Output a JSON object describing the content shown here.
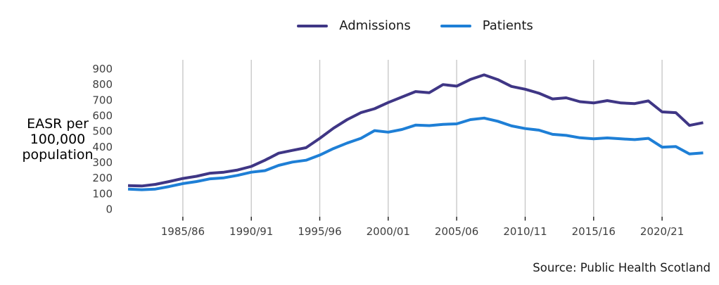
{
  "legend": {
    "items": [
      {
        "label": "Admissions",
        "color": "#3F3685"
      },
      {
        "label": "Patients",
        "color": "#1E7FD6"
      }
    ]
  },
  "y_axis": {
    "title_lines": [
      "EASR per",
      "100,000",
      "population"
    ],
    "ticks": [
      0,
      100,
      200,
      300,
      400,
      500,
      600,
      700,
      800,
      900
    ]
  },
  "x_axis": {
    "ticks": [
      "1985/86",
      "1990/91",
      "1995/96",
      "2000/01",
      "2005/06",
      "2010/11",
      "2015/16",
      "2020/21"
    ]
  },
  "source": "Source: Public Health Scotland",
  "chart_data": {
    "type": "line",
    "x": [
      "1981/82",
      "1982/83",
      "1983/84",
      "1984/85",
      "1985/86",
      "1986/87",
      "1987/88",
      "1988/89",
      "1989/90",
      "1990/91",
      "1991/92",
      "1992/93",
      "1993/94",
      "1994/95",
      "1995/96",
      "1996/97",
      "1997/98",
      "1998/99",
      "1999/00",
      "2000/01",
      "2001/02",
      "2002/03",
      "2003/04",
      "2004/05",
      "2005/06",
      "2006/07",
      "2007/08",
      "2008/09",
      "2009/10",
      "2010/11",
      "2011/12",
      "2012/13",
      "2013/14",
      "2014/15",
      "2015/16",
      "2016/17",
      "2017/18",
      "2018/19",
      "2019/20",
      "2020/21",
      "2021/22",
      "2022/23",
      "2023/24"
    ],
    "series": [
      {
        "name": "Admissions",
        "color": "#3F3685",
        "values": [
          152,
          150,
          160,
          178,
          198,
          212,
          232,
          238,
          252,
          275,
          315,
          360,
          378,
          395,
          455,
          520,
          575,
          620,
          645,
          685,
          720,
          755,
          748,
          800,
          790,
          833,
          862,
          832,
          788,
          770,
          745,
          708,
          715,
          690,
          682,
          697,
          682,
          678,
          695,
          625,
          620,
          538,
          556
        ]
      },
      {
        "name": "Patients",
        "color": "#1E7FD6",
        "values": [
          130,
          126,
          130,
          146,
          165,
          178,
          196,
          202,
          218,
          238,
          248,
          282,
          303,
          315,
          348,
          390,
          425,
          455,
          505,
          495,
          512,
          540,
          537,
          545,
          548,
          575,
          585,
          565,
          535,
          518,
          508,
          481,
          474,
          459,
          452,
          458,
          452,
          447,
          455,
          399,
          403,
          355,
          362
        ]
      }
    ],
    "title": "",
    "xlabel": "",
    "ylabel": "EASR per 100,000 population",
    "ylim": [
      0,
      900
    ],
    "grid": "vertical-only",
    "legend_position": "top-center",
    "source": "Source: Public Health Scotland"
  }
}
